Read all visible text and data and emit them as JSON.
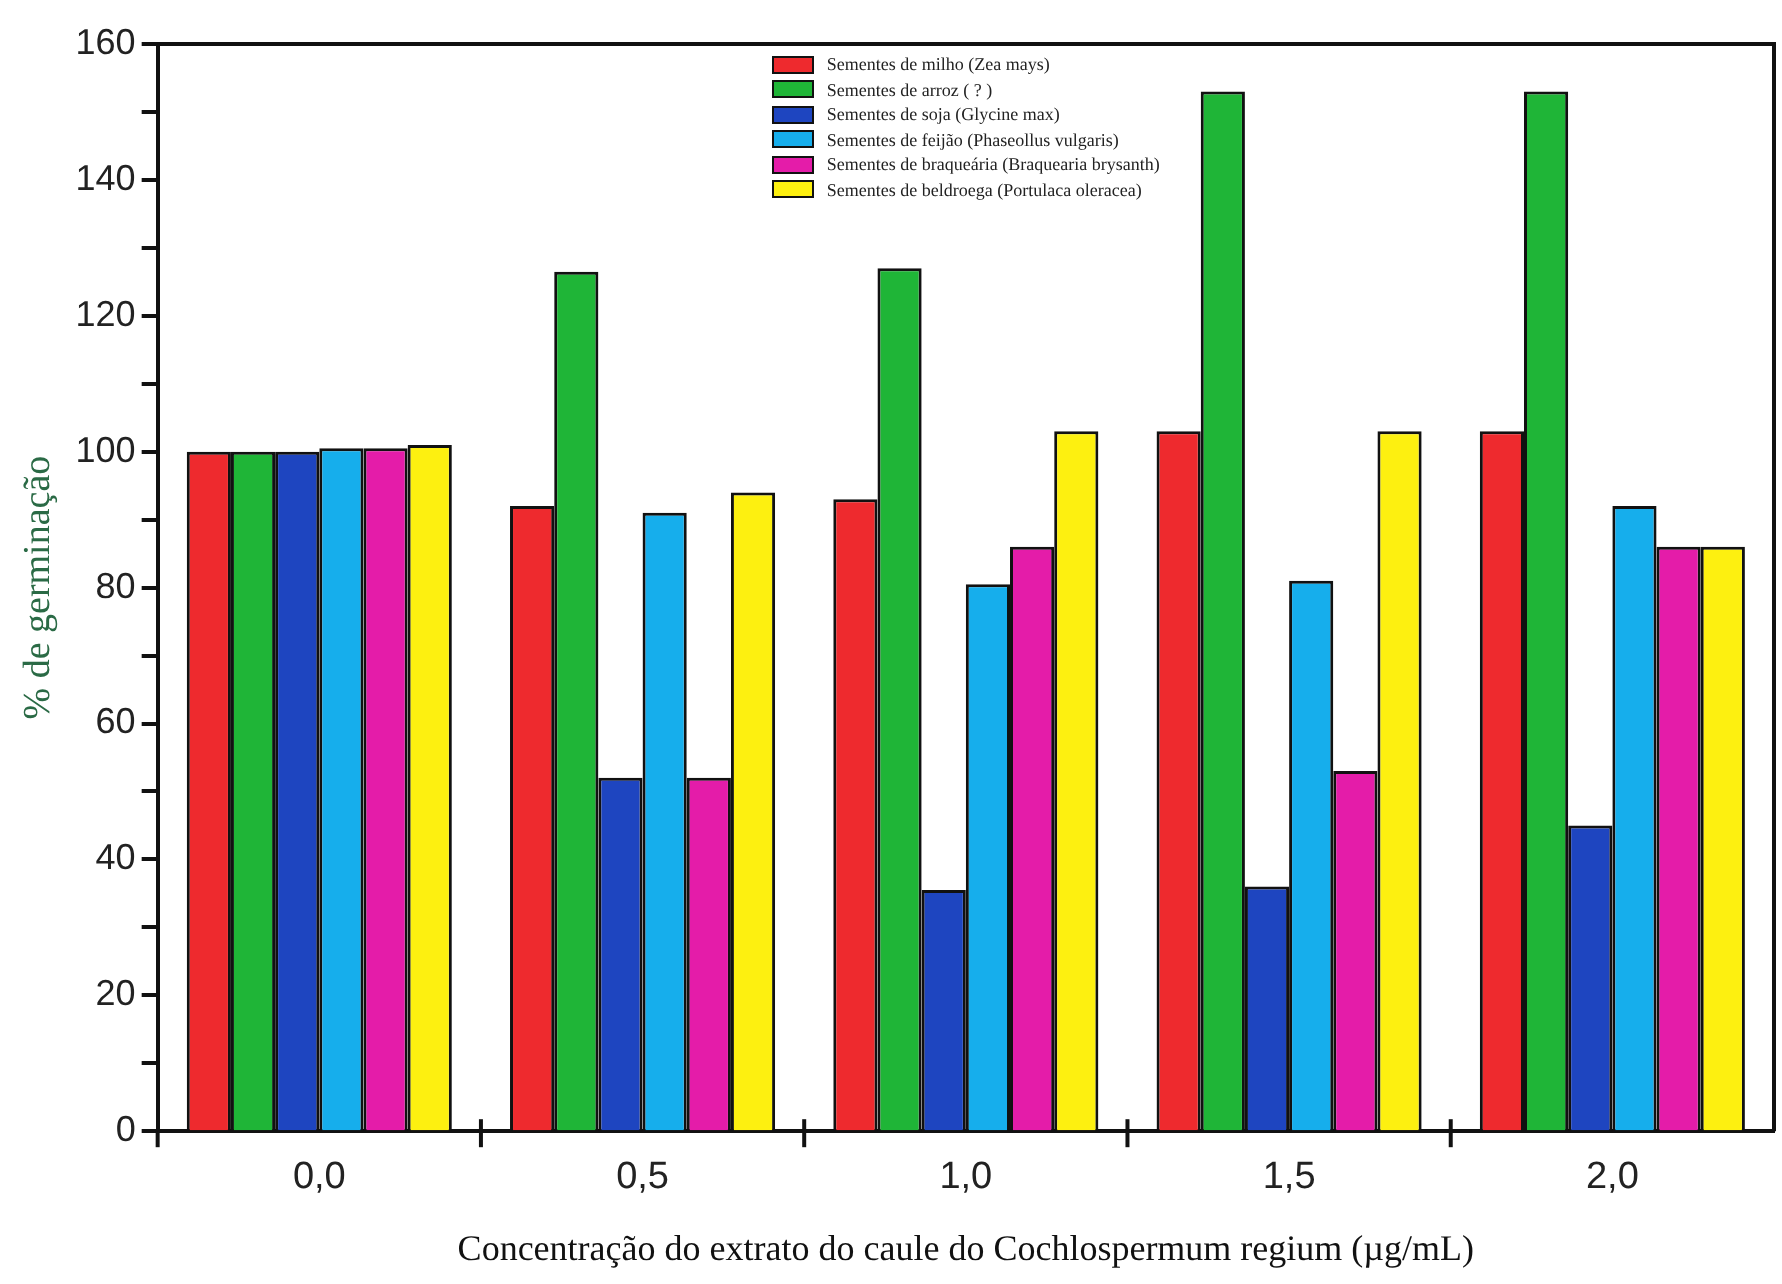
{
  "chart_data": {
    "type": "bar",
    "xlabel": "Concentração do extrato do caule do Cochlospermum regium (µg/mL)",
    "ylabel": "% de germinação",
    "categories": [
      "0,0",
      "0,5",
      "1,0",
      "1,5",
      "2,0"
    ],
    "series": [
      {
        "name": "Sementes de milho (Zea mays)",
        "color": "#ee2a2e",
        "values": [
          100,
          92,
          93,
          103,
          103
        ]
      },
      {
        "name": "Sementes de arroz ( ? )",
        "color": "#1fb537",
        "values": [
          100,
          126.5,
          127,
          153,
          153
        ]
      },
      {
        "name": "Sementes de soja (Glycine max)",
        "color": "#1e45c0",
        "values": [
          100,
          52,
          35.5,
          36,
          45
        ]
      },
      {
        "name": "Sementes de feijão (Phaseollus vulgaris)",
        "color": "#16aeec",
        "values": [
          100.5,
          91,
          80.5,
          81,
          92
        ]
      },
      {
        "name": "Sementes de braqueária (Braquearia brysanth)",
        "color": "#e41ca9",
        "values": [
          100.5,
          52,
          86,
          53,
          86
        ]
      },
      {
        "name": "Sementes de beldroega (Portulaca oleracea)",
        "color": "#fdf010",
        "values": [
          101,
          94,
          103,
          103,
          86
        ]
      }
    ],
    "ylim": [
      0,
      160
    ],
    "yticks": [
      0,
      {
        "value": 10,
        "label": null
      },
      20,
      {
        "value": 30,
        "label": null
      },
      40,
      {
        "value": 50,
        "label": null
      },
      60,
      {
        "value": 70,
        "label": null
      },
      80,
      {
        "value": 90,
        "label": null
      },
      100,
      {
        "value": 110,
        "label": null
      },
      120,
      {
        "value": 130,
        "label": null
      },
      140,
      {
        "value": 150,
        "label": null
      },
      160
    ],
    "grid": false,
    "legend": "top"
  }
}
